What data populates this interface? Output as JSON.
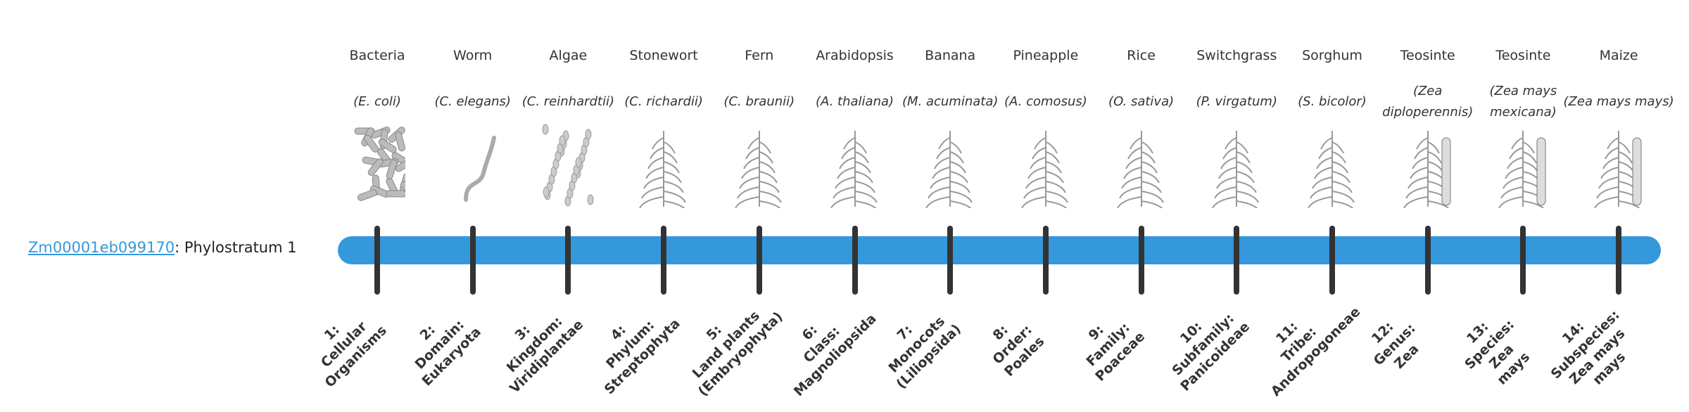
{
  "gene": {
    "id": "Zm00001eb099170",
    "suffix": ": Phylostratum 1"
  },
  "colors": {
    "bar": "#3498db",
    "tick": "#333333",
    "link": "#3498db"
  },
  "strata": [
    {
      "common": "Bacteria",
      "sci": "(E. coli)",
      "icon": "bacteria-icon",
      "rank": [
        "1:",
        "Cellular",
        "Organisms"
      ]
    },
    {
      "common": "Worm",
      "sci": "(C. elegans)",
      "icon": "worm-icon",
      "rank": [
        "2:",
        "Domain:",
        "Eukaryota"
      ]
    },
    {
      "common": "Algae",
      "sci": "(C. reinhardtii)",
      "icon": "algae-icon",
      "rank": [
        "3:",
        "Kingdom:",
        "Viridiplantae"
      ]
    },
    {
      "common": "Stonewort",
      "sci": "(C. richardii)",
      "icon": "stonewort-icon",
      "rank": [
        "4:",
        "Phylum:",
        "Streptophyta"
      ]
    },
    {
      "common": "Fern",
      "sci": "(C. braunii)",
      "icon": "fern-icon",
      "rank": [
        "5:",
        "Land plants",
        "(Embryophyta)"
      ]
    },
    {
      "common": "Arabidopsis",
      "sci": "(A. thaliana)",
      "icon": "arabidopsis-icon",
      "rank": [
        "6:",
        "Class:",
        "Magnoliopsida"
      ]
    },
    {
      "common": "Banana",
      "sci": "(M. acuminata)",
      "icon": "banana-icon",
      "rank": [
        "7:",
        "Monocots",
        "(Liliopsida)"
      ]
    },
    {
      "common": "Pineapple",
      "sci": "(A. comosus)",
      "icon": "pineapple-icon",
      "rank": [
        "8:",
        "Order:",
        "Poales"
      ]
    },
    {
      "common": "Rice",
      "sci": "(O. sativa)",
      "icon": "rice-icon",
      "rank": [
        "9:",
        "Family:",
        "Poaceae"
      ]
    },
    {
      "common": "Switchgrass",
      "sci": "(P. virgatum)",
      "icon": "switchgrass-icon",
      "rank": [
        "10:",
        "Subfamily:",
        "Panicoideae"
      ]
    },
    {
      "common": "Sorghum",
      "sci": "(S. bicolor)",
      "icon": "sorghum-icon",
      "rank": [
        "11:",
        "Tribe:",
        "Andropogoneae"
      ]
    },
    {
      "common": "Teosinte",
      "sci": "(Zea diploperennis)",
      "icon": "teosinte-icon",
      "rank": [
        "12:",
        "Genus:",
        "Zea"
      ]
    },
    {
      "common": "Teosinte",
      "sci": "(Zea mays mexicana)",
      "icon": "teosinte-mexicana-icon",
      "rank": [
        "13:",
        "Species:",
        "Zea",
        "mays"
      ]
    },
    {
      "common": "Maize",
      "sci": "(Zea mays mays)",
      "icon": "maize-icon",
      "rank": [
        "14:",
        "Subspecies:",
        "Zea mays",
        "mays"
      ]
    }
  ]
}
